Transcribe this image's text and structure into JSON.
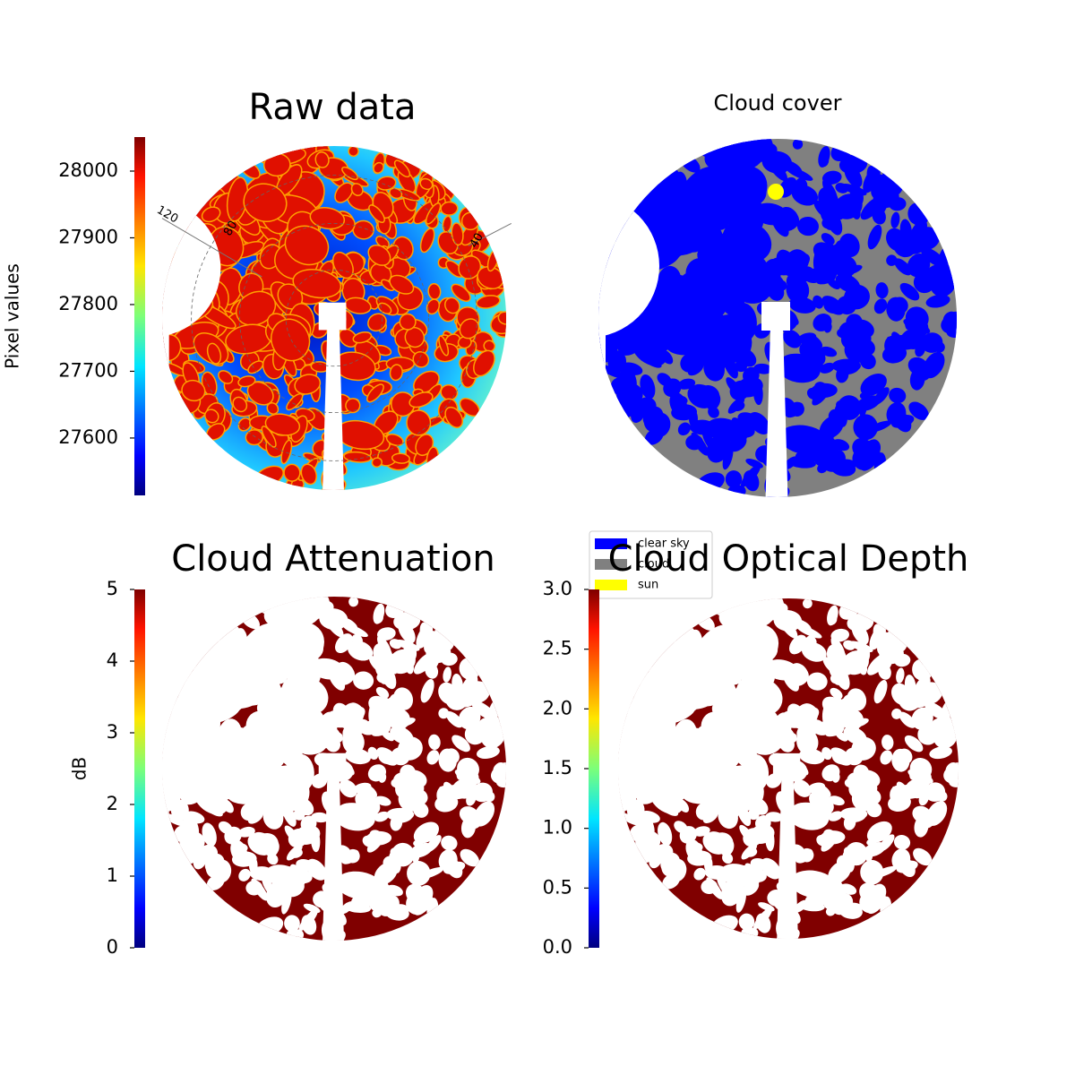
{
  "chart_data": [
    {
      "type": "image",
      "title": "Raw data",
      "colorbar_label": "Pixel values",
      "colormap": "jet",
      "ylim": [
        27514,
        28051
      ],
      "yticks": [
        27600,
        27700,
        27800,
        27900,
        28000
      ],
      "polar_labels": [
        "120",
        "80",
        "40"
      ]
    },
    {
      "type": "classes",
      "title": "Cloud cover",
      "classes": [
        {
          "name": "clear sky",
          "color": "#0000ff"
        },
        {
          "name": "cloud",
          "color": "#808080"
        },
        {
          "name": "sun",
          "color": "#ffff00"
        }
      ]
    },
    {
      "type": "image",
      "title": "Cloud Attenuation",
      "colorbar_label": "dB",
      "colormap": "jet",
      "ylim": [
        0,
        5
      ],
      "yticks": [
        0,
        1,
        2,
        3,
        4,
        5
      ]
    },
    {
      "type": "image",
      "title": "Cloud Optical Depth",
      "colormap": "jet",
      "ylim": [
        0,
        3
      ],
      "yticks": [
        {
          "value": 0,
          "label": "0.0"
        },
        0.5,
        {
          "value": 1,
          "label": "1.0"
        },
        1.5,
        {
          "value": 2,
          "label": "2.0"
        },
        2.5,
        {
          "value": 3,
          "label": "3.0"
        }
      ]
    }
  ]
}
